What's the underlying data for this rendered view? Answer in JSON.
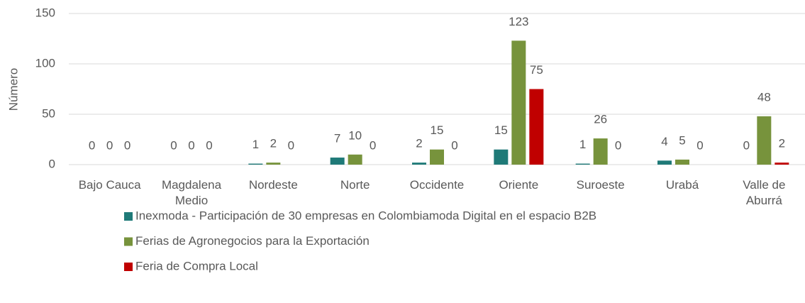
{
  "chart_data": {
    "type": "bar",
    "y_label": "Número",
    "categories": [
      "Bajo Cauca",
      "Magdalena Medio",
      "Nordeste",
      "Norte",
      "Occidente",
      "Oriente",
      "Suroeste",
      "Urabá",
      "Valle de Aburrá"
    ],
    "series": [
      {
        "name": "Inexmoda - Participación de 30 empresas en Colombiamoda Digital en el espacio B2B",
        "color": "#1f7a78",
        "values": [
          0,
          0,
          1,
          7,
          2,
          15,
          1,
          4,
          0
        ]
      },
      {
        "name": "Ferias de Agronegocios para la Exportación",
        "color": "#77933c",
        "values": [
          0,
          0,
          2,
          10,
          15,
          123,
          26,
          5,
          48
        ]
      },
      {
        "name": "Feria de Compra Local",
        "color": "#c00000",
        "values": [
          0,
          0,
          0,
          0,
          0,
          75,
          0,
          0,
          2
        ]
      }
    ],
    "ylim": [
      0,
      150
    ],
    "yticks": [
      0,
      50,
      100,
      150
    ],
    "grid": true,
    "legend": "bottom"
  }
}
